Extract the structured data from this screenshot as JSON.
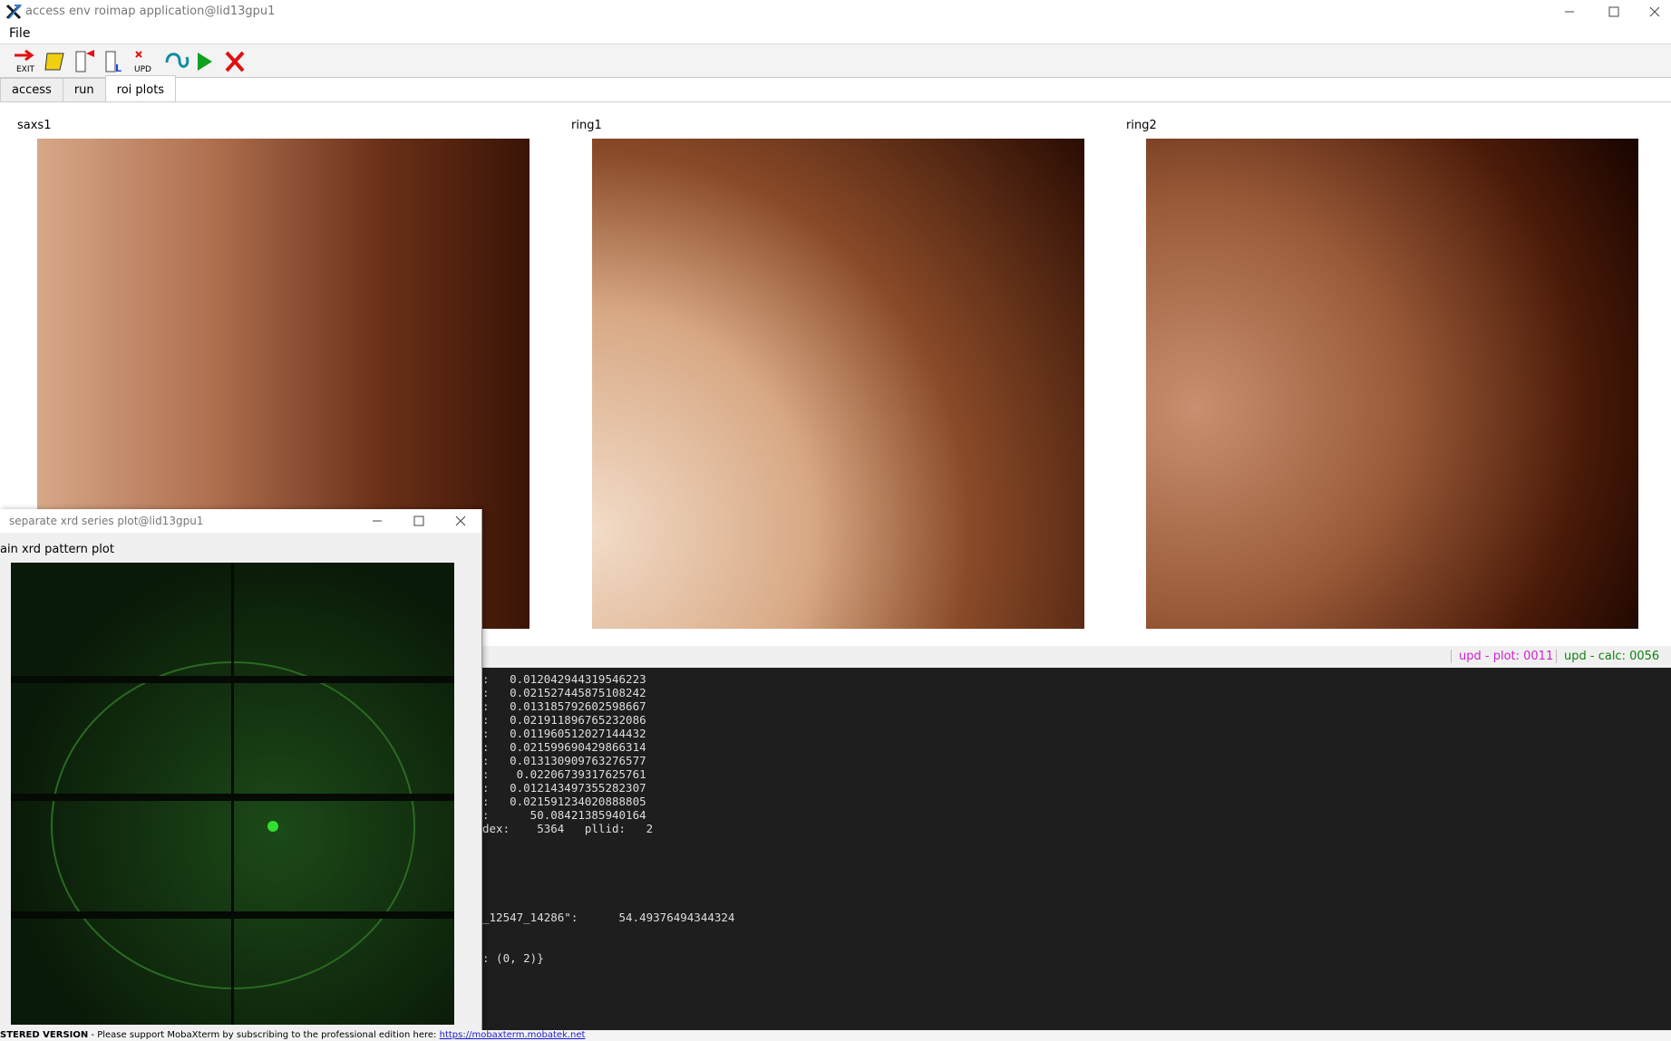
{
  "window": {
    "title": "access env roimap application@lid13gpu1"
  },
  "menu": [
    "File"
  ],
  "toolbar": {
    "exit_label": "EXIT",
    "upd_label": "UPD"
  },
  "tabs": [
    "access",
    "run",
    "roi plots"
  ],
  "active_tab": 2,
  "plots": [
    "saxs1",
    "ring1",
    "ring2"
  ],
  "status": {
    "plot": "upd - plot: 0011",
    "calc": "upd - calc: 0056"
  },
  "console": {
    "values": [
      ":   0.012042944319546223",
      ":   0.021527445875108242",
      ":   0.013185792602598667",
      ":   0.021911896765232086",
      ":   0.011960512027144432",
      ":   0.021599690429866314",
      ":   0.013130909763276577",
      ":    0.02206739317625761",
      ":   0.012143497355282307",
      ":   0.021591234020888805",
      ":      50.08421385940164",
      "dex:    5364   pllid:   2"
    ],
    "result": "_12547_14286\":      54.49376494344324",
    "tail": ": (0, 2)}"
  },
  "subwindow": {
    "title": "separate xrd series plot@lid13gpu1",
    "plot_label": "ain xrd pattern plot"
  },
  "footer": {
    "badge": "STERED VERSION",
    "text": " - Please support MobaXterm by subscribing to the professional edition here: ",
    "link": "https://mobaxterm.mobatek.net"
  }
}
